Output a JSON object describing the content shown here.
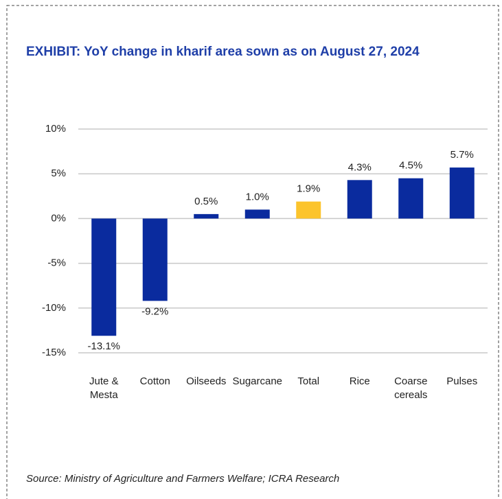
{
  "chart_data": {
    "type": "bar",
    "title": "EXHIBIT: YoY change in kharif area sown as on August 27, 2024",
    "source": "Source: Ministry of Agriculture and Farmers Welfare; ICRA Research",
    "categories": [
      "Jute & Mesta",
      "Cotton",
      "Oilseeds",
      "Sugarcane",
      "Total",
      "Rice",
      "Coarse cereals",
      "Pulses"
    ],
    "values": [
      -13.1,
      -9.2,
      0.5,
      1.0,
      1.9,
      4.3,
      4.5,
      5.7
    ],
    "value_labels": [
      "-13.1%",
      "-9.2%",
      "0.5%",
      "1.0%",
      "1.9%",
      "4.3%",
      "4.5%",
      "5.7%"
    ],
    "colors": [
      "#0a2b9e",
      "#0a2b9e",
      "#0a2b9e",
      "#0a2b9e",
      "#fcc42c",
      "#0a2b9e",
      "#0a2b9e",
      "#0a2b9e"
    ],
    "ylim": [
      -15,
      10
    ],
    "yticks": [
      {
        "value": -15,
        "label": "-15%"
      },
      {
        "value": -10,
        "label": "-10%"
      },
      {
        "value": -5,
        "label": "-5%"
      },
      {
        "value": 0,
        "label": "0%"
      },
      {
        "value": 5,
        "label": "5%"
      },
      {
        "value": 10,
        "label": "10%"
      }
    ],
    "grid": true
  }
}
